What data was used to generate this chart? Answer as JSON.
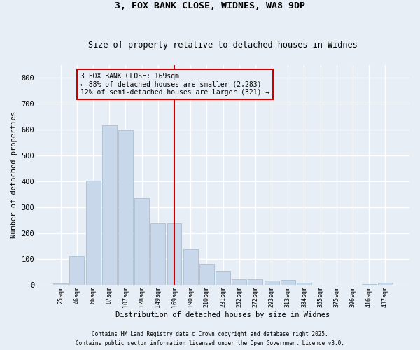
{
  "title1": "3, FOX BANK CLOSE, WIDNES, WA8 9DP",
  "title2": "Size of property relative to detached houses in Widnes",
  "xlabel": "Distribution of detached houses by size in Widnes",
  "ylabel": "Number of detached properties",
  "categories": [
    "25sqm",
    "46sqm",
    "66sqm",
    "87sqm",
    "107sqm",
    "128sqm",
    "149sqm",
    "169sqm",
    "190sqm",
    "210sqm",
    "231sqm",
    "252sqm",
    "272sqm",
    "293sqm",
    "313sqm",
    "334sqm",
    "355sqm",
    "375sqm",
    "396sqm",
    "416sqm",
    "437sqm"
  ],
  "values": [
    5,
    110,
    403,
    617,
    597,
    335,
    237,
    237,
    136,
    80,
    52,
    22,
    22,
    15,
    17,
    6,
    0,
    0,
    0,
    1,
    8
  ],
  "bar_color": "#c8d8ea",
  "bar_edgecolor": "#a8c0d0",
  "vline_x_index": 7,
  "vline_color": "#cc0000",
  "annotation_text": "3 FOX BANK CLOSE: 169sqm\n← 88% of detached houses are smaller (2,283)\n12% of semi-detached houses are larger (321) →",
  "annotation_box_edgecolor": "#cc0000",
  "ylim": [
    0,
    850
  ],
  "yticks": [
    0,
    100,
    200,
    300,
    400,
    500,
    600,
    700,
    800
  ],
  "footer1": "Contains HM Land Registry data © Crown copyright and database right 2025.",
  "footer2": "Contains public sector information licensed under the Open Government Licence v3.0.",
  "bg_color": "#e8eef6"
}
